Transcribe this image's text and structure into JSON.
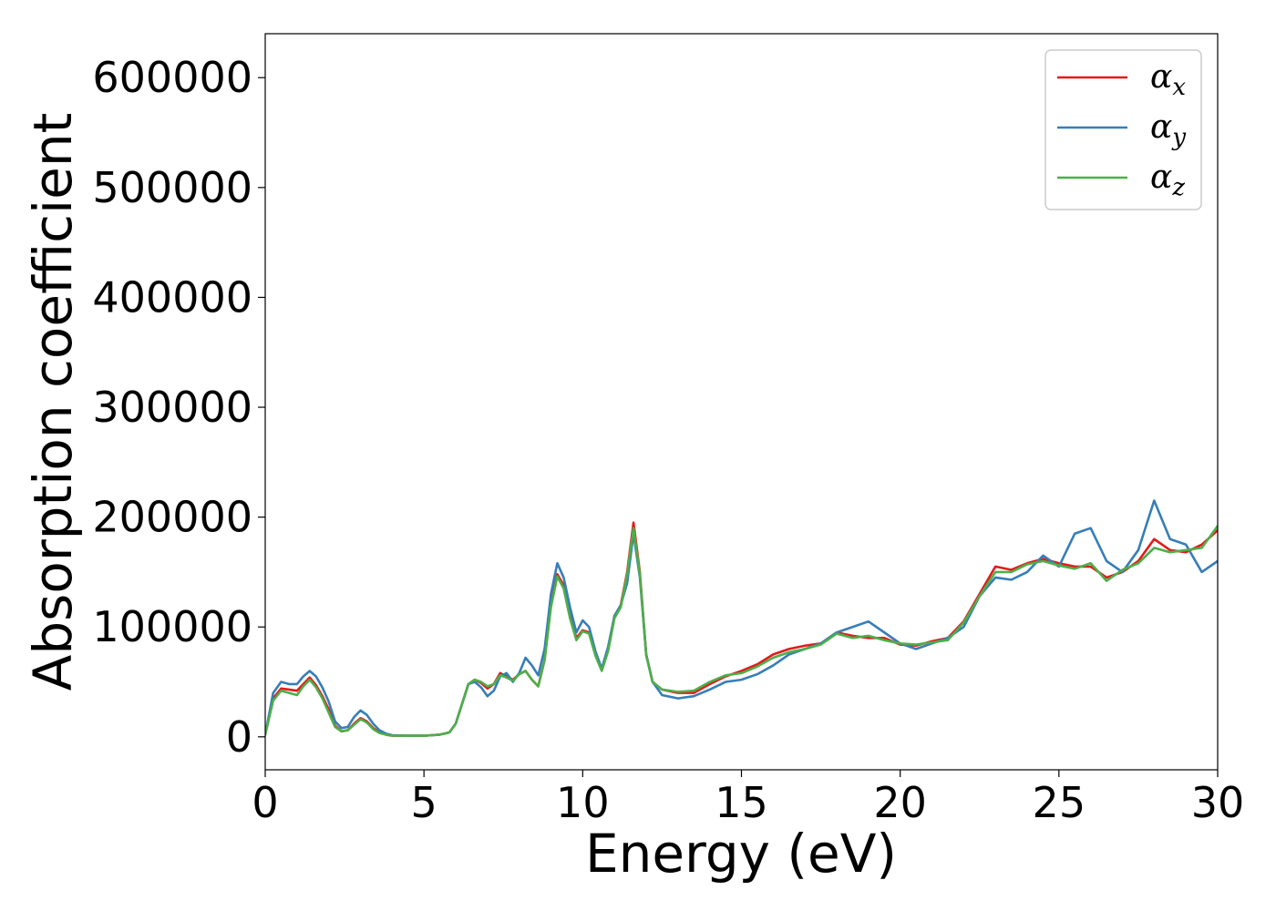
{
  "chart_data": {
    "type": "line",
    "xlabel": "Energy (eV)",
    "ylabel": "Absorption coefficient",
    "xlim": [
      0,
      30
    ],
    "ylim": [
      -30000,
      640000
    ],
    "xticks": [
      0,
      5,
      10,
      15,
      20,
      25,
      30
    ],
    "yticks": [
      0,
      100000,
      200000,
      300000,
      400000,
      500000,
      600000
    ],
    "grid": false,
    "legend_position": "top-right",
    "series": [
      {
        "name": "α_x",
        "symbol": "α",
        "subscript": "x",
        "color": "#e41a1c",
        "x": [
          0,
          0.25,
          0.5,
          0.75,
          1.0,
          1.2,
          1.4,
          1.6,
          1.8,
          2.0,
          2.2,
          2.4,
          2.6,
          2.8,
          3.0,
          3.2,
          3.4,
          3.6,
          3.8,
          4.0,
          4.5,
          5.0,
          5.5,
          5.8,
          6.0,
          6.2,
          6.4,
          6.6,
          6.8,
          7.0,
          7.2,
          7.4,
          7.6,
          7.8,
          8.0,
          8.2,
          8.4,
          8.6,
          8.8,
          9.0,
          9.2,
          9.4,
          9.6,
          9.8,
          10.0,
          10.2,
          10.4,
          10.6,
          10.8,
          11.0,
          11.2,
          11.4,
          11.6,
          11.8,
          12.0,
          12.2,
          12.5,
          13.0,
          13.5,
          14.0,
          14.5,
          15.0,
          15.5,
          16.0,
          16.5,
          17.0,
          17.5,
          18.0,
          18.5,
          19.0,
          19.5,
          20.0,
          20.5,
          21.0,
          21.5,
          22.0,
          22.5,
          23.0,
          23.5,
          24.0,
          24.5,
          25.0,
          25.5,
          26.0,
          26.5,
          27.0,
          27.5,
          28.0,
          28.5,
          29.0,
          29.5,
          30.0
        ],
        "y": [
          2000,
          35000,
          44000,
          43000,
          42000,
          48000,
          54000,
          47000,
          37000,
          25000,
          10000,
          5000,
          6000,
          12000,
          17000,
          14000,
          8000,
          4000,
          2000,
          1000,
          1000,
          1000,
          2000,
          4000,
          12000,
          30000,
          48000,
          52000,
          49000,
          44000,
          48000,
          58000,
          55000,
          52000,
          57000,
          60000,
          52000,
          46000,
          70000,
          120000,
          148000,
          138000,
          110000,
          90000,
          97000,
          95000,
          75000,
          62000,
          80000,
          110000,
          120000,
          150000,
          195000,
          150000,
          75000,
          50000,
          43000,
          40000,
          40000,
          48000,
          55000,
          60000,
          66000,
          75000,
          80000,
          83000,
          85000,
          95000,
          92000,
          90000,
          90000,
          84000,
          83000,
          87000,
          90000,
          105000,
          130000,
          155000,
          152000,
          158000,
          162000,
          158000,
          155000,
          155000,
          145000,
          150000,
          160000,
          180000,
          170000,
          168000,
          175000,
          188000
        ]
      },
      {
        "name": "α_y",
        "symbol": "α",
        "subscript": "y",
        "color": "#377eb8",
        "x": [
          0,
          0.25,
          0.5,
          0.75,
          1.0,
          1.2,
          1.4,
          1.6,
          1.8,
          2.0,
          2.2,
          2.4,
          2.6,
          2.8,
          3.0,
          3.2,
          3.4,
          3.6,
          3.8,
          4.0,
          4.5,
          5.0,
          5.5,
          5.8,
          6.0,
          6.2,
          6.4,
          6.6,
          6.8,
          7.0,
          7.2,
          7.4,
          7.6,
          7.8,
          8.0,
          8.2,
          8.4,
          8.6,
          8.8,
          9.0,
          9.2,
          9.4,
          9.6,
          9.8,
          10.0,
          10.2,
          10.4,
          10.6,
          10.8,
          11.0,
          11.2,
          11.4,
          11.6,
          11.8,
          12.0,
          12.2,
          12.5,
          13.0,
          13.5,
          14.0,
          14.5,
          15.0,
          15.5,
          16.0,
          16.5,
          17.0,
          17.5,
          18.0,
          18.5,
          19.0,
          19.5,
          20.0,
          20.5,
          21.0,
          21.5,
          22.0,
          22.5,
          23.0,
          23.5,
          24.0,
          24.5,
          25.0,
          25.5,
          26.0,
          26.5,
          27.0,
          27.5,
          28.0,
          28.5,
          29.0,
          29.5,
          30.0
        ],
        "y": [
          2000,
          40000,
          50000,
          48000,
          48000,
          55000,
          60000,
          55000,
          45000,
          32000,
          14000,
          8000,
          9000,
          18000,
          24000,
          20000,
          12000,
          6000,
          3000,
          1500,
          1000,
          1000,
          2000,
          4000,
          12000,
          30000,
          48000,
          50000,
          45000,
          37000,
          42000,
          55000,
          58000,
          50000,
          58000,
          72000,
          65000,
          56000,
          80000,
          130000,
          158000,
          145000,
          118000,
          95000,
          106000,
          100000,
          78000,
          62000,
          82000,
          110000,
          120000,
          140000,
          185000,
          145000,
          75000,
          50000,
          38000,
          35000,
          37000,
          43000,
          50000,
          52000,
          57000,
          65000,
          75000,
          80000,
          85000,
          95000,
          100000,
          105000,
          95000,
          85000,
          80000,
          85000,
          90000,
          100000,
          128000,
          145000,
          143000,
          150000,
          165000,
          155000,
          185000,
          190000,
          160000,
          150000,
          170000,
          215000,
          180000,
          175000,
          150000,
          160000
        ]
      },
      {
        "name": "α_z",
        "symbol": "α",
        "subscript": "z",
        "color": "#4daf4a",
        "x": [
          0,
          0.25,
          0.5,
          0.75,
          1.0,
          1.2,
          1.4,
          1.6,
          1.8,
          2.0,
          2.2,
          2.4,
          2.6,
          2.8,
          3.0,
          3.2,
          3.4,
          3.6,
          3.8,
          4.0,
          4.5,
          5.0,
          5.5,
          5.8,
          6.0,
          6.2,
          6.4,
          6.6,
          6.8,
          7.0,
          7.2,
          7.4,
          7.6,
          7.8,
          8.0,
          8.2,
          8.4,
          8.6,
          8.8,
          9.0,
          9.2,
          9.4,
          9.6,
          9.8,
          10.0,
          10.2,
          10.4,
          10.6,
          10.8,
          11.0,
          11.2,
          11.4,
          11.6,
          11.8,
          12.0,
          12.2,
          12.5,
          13.0,
          13.5,
          14.0,
          14.5,
          15.0,
          15.5,
          16.0,
          16.5,
          17.0,
          17.5,
          18.0,
          18.5,
          19.0,
          19.5,
          20.0,
          20.5,
          21.0,
          21.5,
          22.0,
          22.5,
          23.0,
          23.5,
          24.0,
          24.5,
          25.0,
          25.5,
          26.0,
          26.5,
          27.0,
          27.5,
          28.0,
          28.5,
          29.0,
          29.5,
          30.0
        ],
        "y": [
          2000,
          33000,
          42000,
          40000,
          38000,
          46000,
          52000,
          45000,
          35000,
          22000,
          9000,
          5000,
          6000,
          11000,
          16000,
          13000,
          7000,
          3500,
          2000,
          1000,
          1000,
          1000,
          2000,
          4000,
          12000,
          30000,
          48000,
          52000,
          50000,
          46000,
          48000,
          56000,
          54000,
          51000,
          57000,
          60000,
          52000,
          46000,
          70000,
          118000,
          146000,
          135000,
          108000,
          88000,
          96000,
          94000,
          74000,
          60000,
          78000,
          108000,
          118000,
          148000,
          190000,
          148000,
          74000,
          50000,
          43000,
          41000,
          42000,
          50000,
          56000,
          58000,
          64000,
          72000,
          77000,
          80000,
          84000,
          94000,
          90000,
          92000,
          88000,
          85000,
          84000,
          86000,
          88000,
          104000,
          128000,
          150000,
          150000,
          157000,
          160000,
          156000,
          153000,
          158000,
          142000,
          152000,
          158000,
          172000,
          168000,
          170000,
          172000,
          192000
        ]
      }
    ]
  }
}
